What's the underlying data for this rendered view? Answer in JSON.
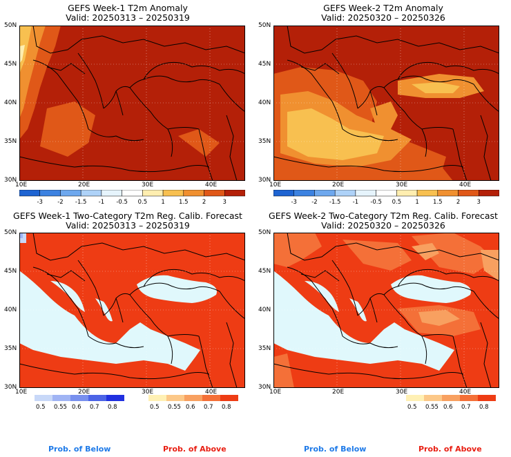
{
  "panels": [
    {
      "title": "GEFS Week-1 T2m Anomaly",
      "valid": "Valid: 20250313 – 20250319",
      "kind": "anom",
      "week": 1
    },
    {
      "title": "GEFS Week-2 T2m Anomaly",
      "valid": "Valid: 20250320 – 20250326",
      "kind": "anom",
      "week": 2
    },
    {
      "title": "GEFS Week-1 Two-Category T2m Reg. Calib. Forecast",
      "valid": "Valid: 20250313 – 20250319",
      "kind": "prob",
      "week": 1
    },
    {
      "title": "GEFS Week-2 Two-Category T2m Reg. Calib. Forecast",
      "valid": "Valid: 20250320 – 20250326",
      "kind": "prob",
      "week": 2
    }
  ],
  "axes": {
    "lat_labels": [
      "50N",
      "45N",
      "40N",
      "35N",
      "30N"
    ],
    "lon_labels": [
      "10E",
      "20E",
      "30E",
      "40E"
    ]
  },
  "anomaly_colorbar": {
    "labels": [
      "-3",
      "-2",
      "-1.5",
      "-1",
      "-0.5",
      "0.5",
      "1",
      "1.5",
      "2",
      "3"
    ],
    "colors": [
      "#1e64d2",
      "#3c82e1",
      "#6ea8ee",
      "#aed2f8",
      "#e6f4fc",
      "#ffffff",
      "#ffeeb0",
      "#f8c050",
      "#f09030",
      "#e05818",
      "#b42008"
    ]
  },
  "prob_colorbar_below": {
    "labels": [
      "0.5",
      "0.55",
      "0.6",
      "0.7",
      "0.8"
    ],
    "colors": [
      "#c8d8f8",
      "#a0b4f4",
      "#7890ee",
      "#4c64e6",
      "#2030e0"
    ]
  },
  "prob_colorbar_above": {
    "labels": [
      "0.5",
      "0.55",
      "0.6",
      "0.7",
      "0.8"
    ],
    "colors": [
      "#fff0b4",
      "#fcc888",
      "#f8a060",
      "#f47038",
      "#ee3c14"
    ]
  },
  "legend_text": {
    "below": "Prob. of Below",
    "above": "Prob. of Above"
  },
  "colors": {
    "anom_base": "#b42008",
    "prob_base": "#ee3c14",
    "sea": "#e0f8fc",
    "land_line": "#000000"
  }
}
